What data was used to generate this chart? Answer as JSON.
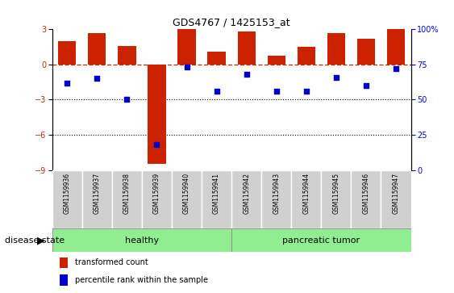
{
  "title": "GDS4767 / 1425153_at",
  "samples": [
    "GSM1159936",
    "GSM1159937",
    "GSM1159938",
    "GSM1159939",
    "GSM1159940",
    "GSM1159941",
    "GSM1159942",
    "GSM1159943",
    "GSM1159944",
    "GSM1159945",
    "GSM1159946",
    "GSM1159947"
  ],
  "transformed_count": [
    2.0,
    2.7,
    1.6,
    -8.5,
    3.0,
    1.1,
    2.8,
    0.75,
    1.5,
    2.7,
    2.2,
    3.0
  ],
  "percentile_rank": [
    62,
    65,
    50,
    18,
    73,
    56,
    68,
    56,
    56,
    66,
    60,
    72
  ],
  "bar_color": "#CC2200",
  "dot_color": "#0000CC",
  "ylim_left": [
    -9,
    3
  ],
  "ylim_right": [
    0,
    100
  ],
  "yticks_left": [
    -9,
    -6,
    -3,
    0,
    3
  ],
  "yticks_right": [
    0,
    25,
    50,
    75,
    100
  ],
  "ytick_labels_right": [
    "0",
    "25",
    "50",
    "75",
    "100%"
  ],
  "hline_y": 0,
  "dotted_lines": [
    -3,
    -6
  ],
  "background_color": "#ffffff",
  "legend_items": [
    "transformed count",
    "percentile rank within the sample"
  ],
  "disease_state_label": "disease state",
  "group_label_healthy": "healthy",
  "group_label_tumor": "pancreatic tumor",
  "healthy_color": "#90EE90",
  "tumor_color": "#90EE90",
  "gray_box_color": "#D0D0D0",
  "n_healthy": 6,
  "n_tumor": 6,
  "bar_width": 0.6
}
